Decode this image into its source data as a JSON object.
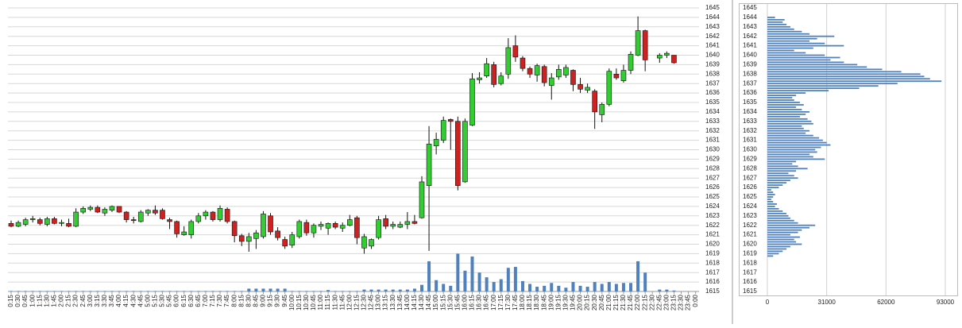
{
  "chart_data": [
    {
      "type": "candlestick",
      "categories": [
        "0:15",
        "0:30",
        "0:45",
        "1:00",
        "1:15",
        "1:30",
        "1:45",
        "2:00",
        "2:15",
        "2:30",
        "2:45",
        "3:00",
        "3:15",
        "3:30",
        "3:45",
        "4:00",
        "4:15",
        "4:30",
        "4:45",
        "5:00",
        "5:15",
        "5:30",
        "5:45",
        "6:00",
        "6:15",
        "6:30",
        "6:45",
        "7:00",
        "7:15",
        "7:30",
        "7:45",
        "8:00",
        "8:15",
        "8:30",
        "8:45",
        "9:00",
        "9:15",
        "9:30",
        "9:45",
        "10:00",
        "10:15",
        "10:30",
        "10:45",
        "11:00",
        "11:15",
        "11:30",
        "11:45",
        "12:00",
        "12:15",
        "12:30",
        "12:45",
        "13:00",
        "13:15",
        "13:30",
        "13:45",
        "14:00",
        "14:15",
        "14:30",
        "14:45",
        "15:00",
        "15:15",
        "15:30",
        "15:45",
        "16:00",
        "16:15",
        "16:30",
        "16:45",
        "17:00",
        "17:15",
        "17:30",
        "17:45",
        "18:00",
        "18:15",
        "18:30",
        "18:45",
        "19:00",
        "19:15",
        "19:30",
        "19:45",
        "20:00",
        "20:15",
        "20:30",
        "20:45",
        "21:00",
        "21:15",
        "21:30",
        "21:45",
        "22:00",
        "22:15",
        "22:30",
        "22:45",
        "23:00",
        "23:15",
        "23:30",
        "23:45",
        "0:00"
      ],
      "open": [
        1622.2,
        1621.9,
        1622.1,
        1622.6,
        1622.6,
        1622.1,
        1622.7,
        1622.2,
        1622.2,
        1621.9,
        1623.4,
        1623.7,
        1623.9,
        1623.3,
        1623.6,
        1624.0,
        1623.4,
        1622.6,
        1622.4,
        1623.3,
        1623.6,
        1623.6,
        1622.6,
        1622.4,
        1621.0,
        1621.0,
        1622.4,
        1623.0,
        1623.4,
        1622.6,
        1623.7,
        1622.4,
        1620.9,
        1620.3,
        1620.6,
        1620.8,
        1623.0,
        1621.4,
        1620.5,
        1619.9,
        1620.8,
        1622.3,
        1621.2,
        1621.9,
        1621.7,
        1622.2,
        1621.7,
        1622.0,
        1622.8,
        1619.6,
        1619.8,
        1620.7,
        1622.7,
        1621.9,
        1621.8,
        1622.1,
        1622.4,
        1622.8,
        1626.2,
        1630.4,
        1631.0,
        1633.2,
        1633.0,
        1626.6,
        1632.6,
        1637.4,
        1637.8,
        1639.0,
        1637.0,
        1638.0,
        1641.0,
        1639.7,
        1638.6,
        1637.9,
        1638.8,
        1636.8,
        1637.7,
        1637.9,
        1638.4,
        1636.9,
        1636.3,
        1636.2,
        1633.7,
        1634.8,
        1638.0,
        1637.3,
        1638.4,
        1640.0,
        1642.6,
        null,
        1639.7,
        1640.0,
        1640.0,
        null,
        null,
        null
      ],
      "high": [
        1622.5,
        1622.5,
        1622.8,
        1623.0,
        1622.8,
        1622.9,
        1622.9,
        1622.6,
        1622.7,
        1623.8,
        1624.0,
        1624.1,
        1624.1,
        1623.9,
        1624.1,
        1624.0,
        1623.5,
        1622.9,
        1623.6,
        1623.7,
        1624.1,
        1623.8,
        1622.8,
        1622.5,
        1621.9,
        1622.6,
        1623.3,
        1623.6,
        1623.5,
        1624.1,
        1623.9,
        1622.5,
        1621.1,
        1621.2,
        1621.5,
        1623.5,
        1623.3,
        1621.8,
        1620.8,
        1621.3,
        1622.6,
        1622.6,
        1622.2,
        1622.4,
        1622.3,
        1622.4,
        1622.3,
        1623.1,
        1623.0,
        1621.1,
        1620.6,
        1623.0,
        1623.1,
        1622.4,
        1622.4,
        1623.4,
        1623.1,
        1627.2,
        1632.5,
        1631.8,
        1633.5,
        1633.3,
        1633.5,
        1633.3,
        1638.1,
        1638.2,
        1639.7,
        1639.3,
        1638.2,
        1641.8,
        1642.1,
        1639.9,
        1638.8,
        1639.1,
        1639.0,
        1638.1,
        1639.0,
        1639.0,
        1638.5,
        1637.6,
        1637.0,
        1636.4,
        1635.0,
        1638.6,
        1638.6,
        1639.0,
        1640.4,
        1644.1,
        1642.7,
        null,
        1640.2,
        1640.4,
        1640.0,
        null,
        null,
        null
      ],
      "low": [
        1621.8,
        1621.8,
        1621.9,
        1622.3,
        1622.0,
        1621.9,
        1622.1,
        1621.9,
        1621.8,
        1621.8,
        1623.2,
        1623.5,
        1623.3,
        1623.0,
        1623.4,
        1623.3,
        1622.3,
        1622.2,
        1622.3,
        1623.0,
        1623.1,
        1622.6,
        1621.6,
        1620.7,
        1620.9,
        1620.6,
        1622.2,
        1622.6,
        1622.4,
        1622.4,
        1622.2,
        1620.2,
        1619.8,
        1619.2,
        1619.5,
        1620.6,
        1621.0,
        1620.4,
        1619.5,
        1619.6,
        1620.6,
        1620.9,
        1620.7,
        1621.5,
        1621.0,
        1621.6,
        1621.3,
        1621.9,
        1620.0,
        1619.0,
        1619.5,
        1620.5,
        1621.6,
        1621.6,
        1621.7,
        1621.6,
        1622.1,
        1622.7,
        1619.3,
        1629.5,
        1630.7,
        1630.0,
        1625.7,
        1626.5,
        1632.5,
        1637.0,
        1637.6,
        1636.6,
        1636.8,
        1637.5,
        1639.3,
        1638.3,
        1637.6,
        1637.2,
        1636.7,
        1635.3,
        1637.4,
        1637.6,
        1636.2,
        1636.0,
        1636.0,
        1632.2,
        1632.9,
        1634.6,
        1637.4,
        1637.1,
        1638.0,
        1639.9,
        1638.3,
        null,
        1639.2,
        1639.7,
        1639.1,
        null,
        null,
        null
      ],
      "close": [
        1621.9,
        1622.3,
        1622.6,
        1622.7,
        1622.2,
        1622.7,
        1622.2,
        1622.3,
        1621.9,
        1623.4,
        1623.8,
        1623.9,
        1623.4,
        1623.7,
        1624.0,
        1623.4,
        1622.6,
        1622.5,
        1623.4,
        1623.6,
        1623.3,
        1622.7,
        1622.4,
        1621.1,
        1621.3,
        1622.4,
        1623.0,
        1623.4,
        1622.6,
        1623.8,
        1622.4,
        1620.9,
        1620.3,
        1620.8,
        1621.2,
        1623.2,
        1621.3,
        1620.7,
        1619.8,
        1621.0,
        1622.4,
        1621.2,
        1622.0,
        1622.1,
        1622.2,
        1621.8,
        1622.0,
        1622.6,
        1620.7,
        1620.8,
        1620.5,
        1622.6,
        1621.9,
        1622.1,
        1622.1,
        1622.4,
        1622.2,
        1626.6,
        1630.6,
        1631.1,
        1633.1,
        1633.0,
        1626.2,
        1633.0,
        1637.5,
        1637.6,
        1639.1,
        1636.9,
        1637.8,
        1640.8,
        1639.8,
        1638.6,
        1638.0,
        1638.9,
        1637.1,
        1637.6,
        1638.5,
        1638.7,
        1636.9,
        1636.4,
        1636.6,
        1634.0,
        1634.8,
        1638.3,
        1637.6,
        1638.4,
        1640.1,
        1642.6,
        1639.5,
        null,
        1640.0,
        1640.2,
        1639.2,
        null,
        null,
        null
      ],
      "volume": [
        1615.05,
        1615.05,
        1615.05,
        1615.05,
        1615.05,
        1615.05,
        1615.05,
        1615.05,
        1615.05,
        1615.05,
        1615.05,
        1615.05,
        1615.05,
        1615.05,
        1615.05,
        1615.05,
        1615.05,
        1615.05,
        1615.05,
        1615.05,
        1615.05,
        1615.05,
        1615.05,
        1615.05,
        1615.05,
        1615.05,
        1615.05,
        1615.05,
        1615.05,
        1615.05,
        1615.05,
        1615.05,
        1615.05,
        1615.3,
        1615.3,
        1615.3,
        1615.3,
        1615.3,
        1615.3,
        1615.05,
        1615.05,
        1615.05,
        1615.05,
        1615.05,
        1615.15,
        1615.05,
        1615.05,
        1615.05,
        1615.05,
        1615.2,
        1615.2,
        1615.2,
        1615.2,
        1615.2,
        1615.2,
        1615.2,
        1615.3,
        1615.7,
        1618.2,
        1616.2,
        1615.8,
        1615.6,
        1619.0,
        1617.2,
        1618.7,
        1617.0,
        1616.5,
        1616.0,
        1616.3,
        1617.5,
        1617.6,
        1616.1,
        1615.8,
        1615.5,
        1615.6,
        1615.9,
        1615.6,
        1615.4,
        1616.0,
        1615.6,
        1615.5,
        1616.0,
        1615.8,
        1616.0,
        1615.8,
        1615.9,
        1615.9,
        1618.2,
        1617.0,
        null,
        1615.2,
        1615.2,
        1615.1,
        null,
        null,
        null
      ],
      "up_color": "#33cc33",
      "down_color": "#cc2222",
      "volume_color": "#4f81bd",
      "ylim": [
        1615,
        1645
      ],
      "yticks": [
        1615,
        1616,
        1617,
        1618,
        1619,
        1620,
        1621,
        1622,
        1623,
        1624,
        1625,
        1626,
        1627,
        1628,
        1629,
        1630,
        1631,
        1632,
        1633,
        1634,
        1635,
        1636,
        1637,
        1638,
        1639,
        1640,
        1641,
        1642,
        1643,
        1644,
        1645
      ],
      "grid": true
    },
    {
      "type": "barh",
      "y": [
        1618.75,
        1619,
        1619.25,
        1619.5,
        1619.75,
        1620,
        1620.25,
        1620.5,
        1620.75,
        1621,
        1621.25,
        1621.5,
        1621.75,
        1622,
        1622.25,
        1622.5,
        1622.75,
        1623,
        1623.25,
        1623.5,
        1623.75,
        1624,
        1624.25,
        1624.5,
        1624.75,
        1625,
        1625.25,
        1625.5,
        1625.75,
        1626,
        1626.25,
        1626.5,
        1626.75,
        1627,
        1627.25,
        1627.5,
        1627.75,
        1628,
        1628.25,
        1628.5,
        1628.75,
        1629,
        1629.25,
        1629.5,
        1629.75,
        1630,
        1630.25,
        1630.5,
        1630.75,
        1631,
        1631.25,
        1631.5,
        1631.75,
        1632,
        1632.25,
        1632.5,
        1632.75,
        1633,
        1633.25,
        1633.5,
        1633.75,
        1634,
        1634.25,
        1634.5,
        1634.75,
        1635,
        1635.25,
        1635.5,
        1635.75,
        1636,
        1636.25,
        1636.5,
        1636.75,
        1637,
        1637.25,
        1637.5,
        1637.75,
        1638,
        1638.25,
        1638.5,
        1638.75,
        1639,
        1639.25,
        1639.5,
        1639.75,
        1640,
        1640.25,
        1640.5,
        1640.75,
        1641,
        1641.25,
        1641.5,
        1641.75,
        1642,
        1642.25,
        1642.5,
        1642.75,
        1643,
        1643.25,
        1643.5,
        1643.75,
        1644
      ],
      "values": [
        3000,
        6000,
        8000,
        10000,
        12000,
        18000,
        15000,
        14000,
        17000,
        12000,
        16000,
        18000,
        22000,
        25000,
        16000,
        14000,
        12000,
        11000,
        10000,
        8000,
        6000,
        4000,
        5000,
        3000,
        2000,
        3000,
        4000,
        3000,
        2000,
        6000,
        8000,
        10000,
        12000,
        16000,
        14000,
        11000,
        15000,
        21000,
        16000,
        13000,
        15000,
        30000,
        24000,
        22000,
        26000,
        25000,
        28000,
        33000,
        31000,
        29000,
        27000,
        24000,
        20000,
        22000,
        19000,
        18000,
        24000,
        23000,
        21000,
        17000,
        20000,
        22000,
        18000,
        15000,
        19000,
        17000,
        14000,
        13000,
        15000,
        20000,
        32000,
        48000,
        58000,
        68000,
        91000,
        85000,
        82000,
        80000,
        70000,
        60000,
        52000,
        47000,
        40000,
        33000,
        38000,
        30000,
        20000,
        14000,
        24000,
        40000,
        30000,
        22000,
        26000,
        35000,
        22000,
        18000,
        14000,
        12000,
        10000,
        8000,
        9000,
        4000
      ],
      "color": "#4f81bd",
      "xlim": [
        0,
        93000
      ],
      "xticks": [
        0,
        31000,
        62000,
        93000
      ],
      "ylim": [
        1615,
        1645
      ],
      "yticks": [
        1615,
        1616,
        1617,
        1618,
        1619,
        1620,
        1621,
        1622,
        1623,
        1624,
        1625,
        1626,
        1627,
        1628,
        1629,
        1630,
        1631,
        1632,
        1633,
        1634,
        1635,
        1636,
        1637,
        1638,
        1639,
        1640,
        1641,
        1642,
        1643,
        1644,
        1645
      ],
      "grid": true
    }
  ]
}
